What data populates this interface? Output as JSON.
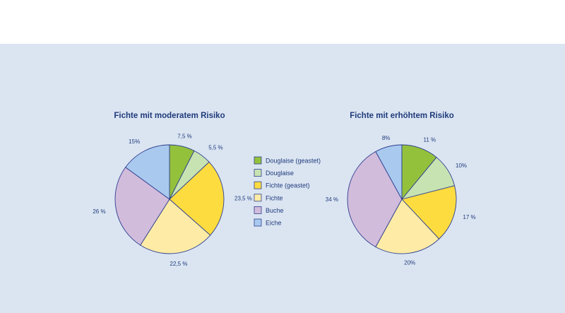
{
  "colors": {
    "background_panel": "#dbe5f2",
    "text": "#1f3a7a",
    "outline": "#2e3f8f",
    "douglaise_geastet": "#93c13c",
    "douglaise": "#c8e3b2",
    "fichte_geastet": "#fddc40",
    "fichte": "#feeca6",
    "buche": "#d2bcdc",
    "eiche": "#a9c9ee"
  },
  "legend": {
    "items": [
      {
        "label": "Douglaise (geastet)",
        "color": "#93c13c"
      },
      {
        "label": "Douglaise",
        "color": "#c8e3b2"
      },
      {
        "label": "Fichte (geastet)",
        "color": "#fddc40"
      },
      {
        "label": "Fichte",
        "color": "#feeca6"
      },
      {
        "label": "Buche",
        "color": "#d2bcdc"
      },
      {
        "label": "Eiche",
        "color": "#a9c9ee"
      }
    ]
  },
  "chart_data": [
    {
      "type": "pie",
      "title": "Fichte mit moderatem Risiko",
      "categories": [
        "Douglaise (geastet)",
        "Douglaise",
        "Fichte (geastet)",
        "Fichte",
        "Buche",
        "Eiche"
      ],
      "values": [
        7.5,
        5.5,
        23.5,
        22.5,
        26,
        15
      ],
      "value_labels": [
        "7,5 %",
        "5,5 %",
        "23,5 %",
        "22,5 %",
        "26 %",
        "15%"
      ]
    },
    {
      "type": "pie",
      "title": "Fichte mit erhöhtem Risiko",
      "categories": [
        "Douglaise (geastet)",
        "Douglaise",
        "Fichte (geastet)",
        "Fichte",
        "Buche",
        "Eiche"
      ],
      "values": [
        11,
        10,
        17,
        20,
        34,
        8
      ],
      "value_labels": [
        "11 %",
        "10%",
        "17 %",
        "20%",
        "34 %",
        "8%"
      ]
    }
  ]
}
